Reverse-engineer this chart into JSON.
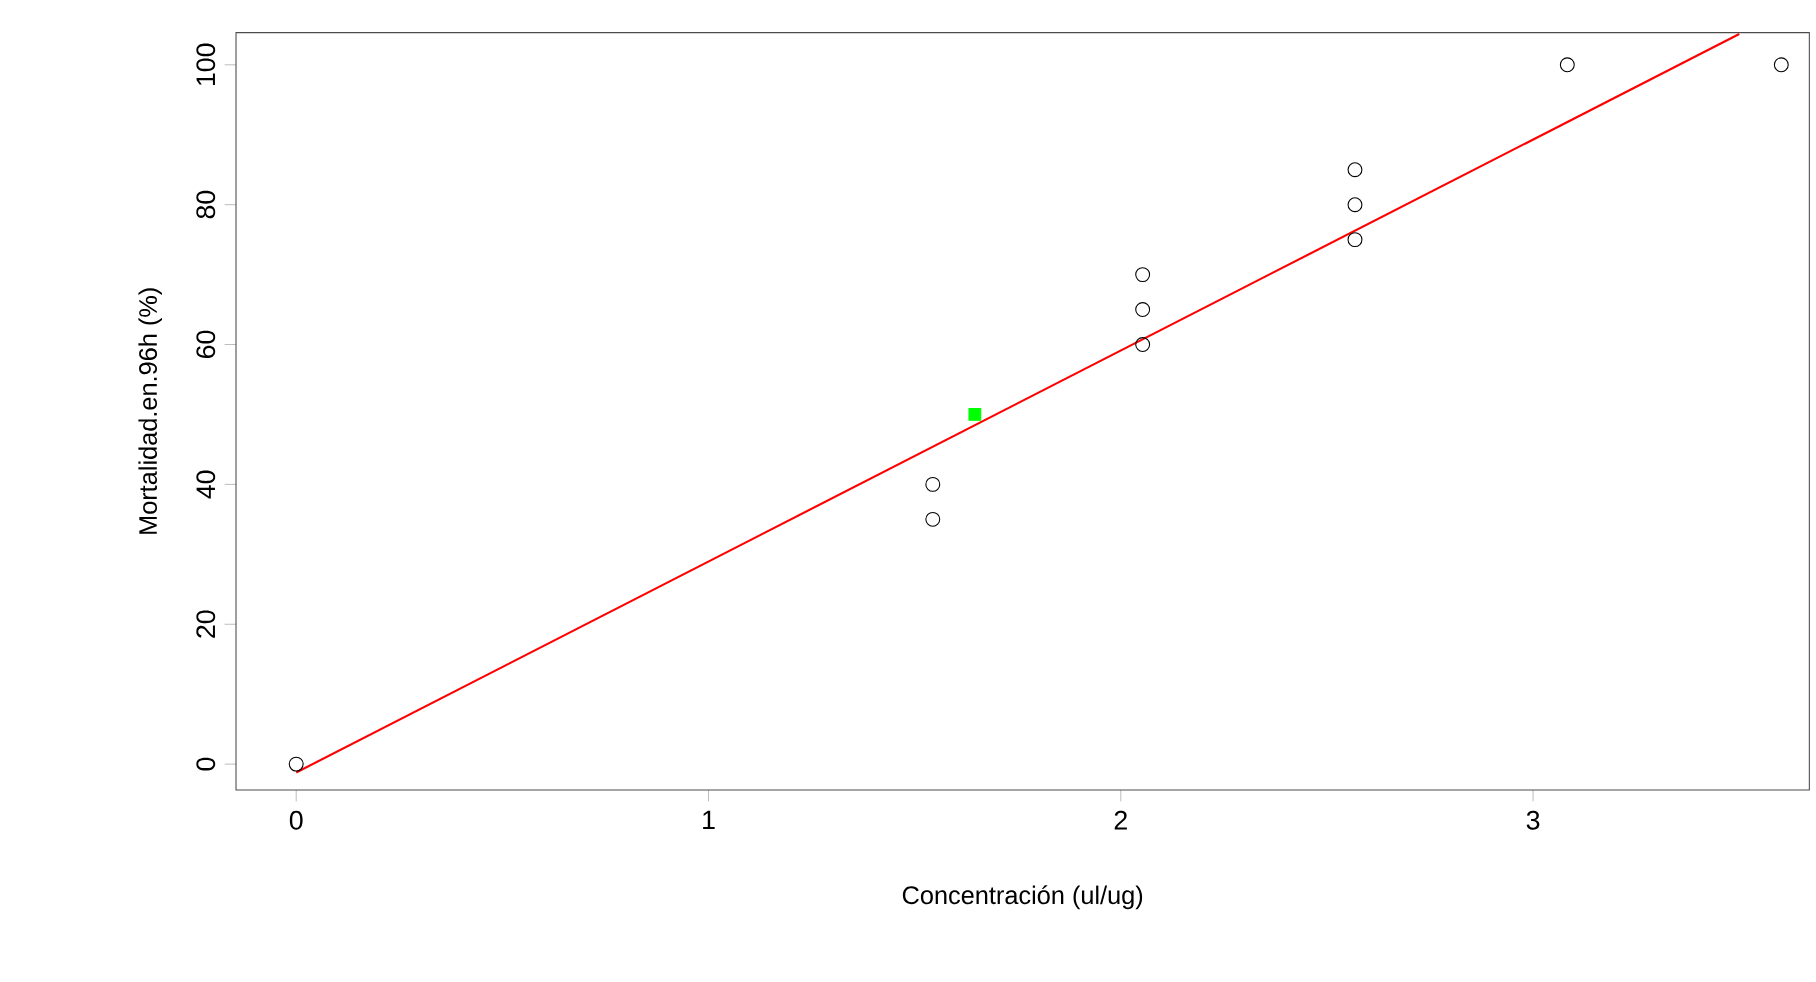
{
  "chart_data": {
    "type": "scatter",
    "xlabel": "Concentración (ul/ug)",
    "ylabel": "Mortalidad.en.96h (%)",
    "xlim": [
      -0.146,
      3.67
    ],
    "ylim": [
      -3.7,
      104.6
    ],
    "xticks": [
      0,
      1,
      2,
      3
    ],
    "yticks": [
      0,
      20,
      40,
      60,
      80,
      100
    ],
    "grid": false,
    "series": [
      {
        "marker": "circle",
        "color": "#000000",
        "x": [
          0,
          1.544,
          1.544,
          2.053,
          2.053,
          2.053,
          2.568,
          2.568,
          2.568,
          3.083,
          3.602
        ],
        "values": [
          0,
          40,
          35,
          70,
          65,
          60,
          85,
          80,
          75,
          100,
          100
        ]
      },
      {
        "type": "line",
        "marker": "none",
        "color": "#ff0000",
        "x": [
          0,
          3.5
        ],
        "values": [
          -1.2,
          104.4
        ]
      },
      {
        "marker": "square",
        "color": "#00ff00",
        "x": [
          1.646
        ],
        "values": [
          50
        ]
      }
    ]
  }
}
